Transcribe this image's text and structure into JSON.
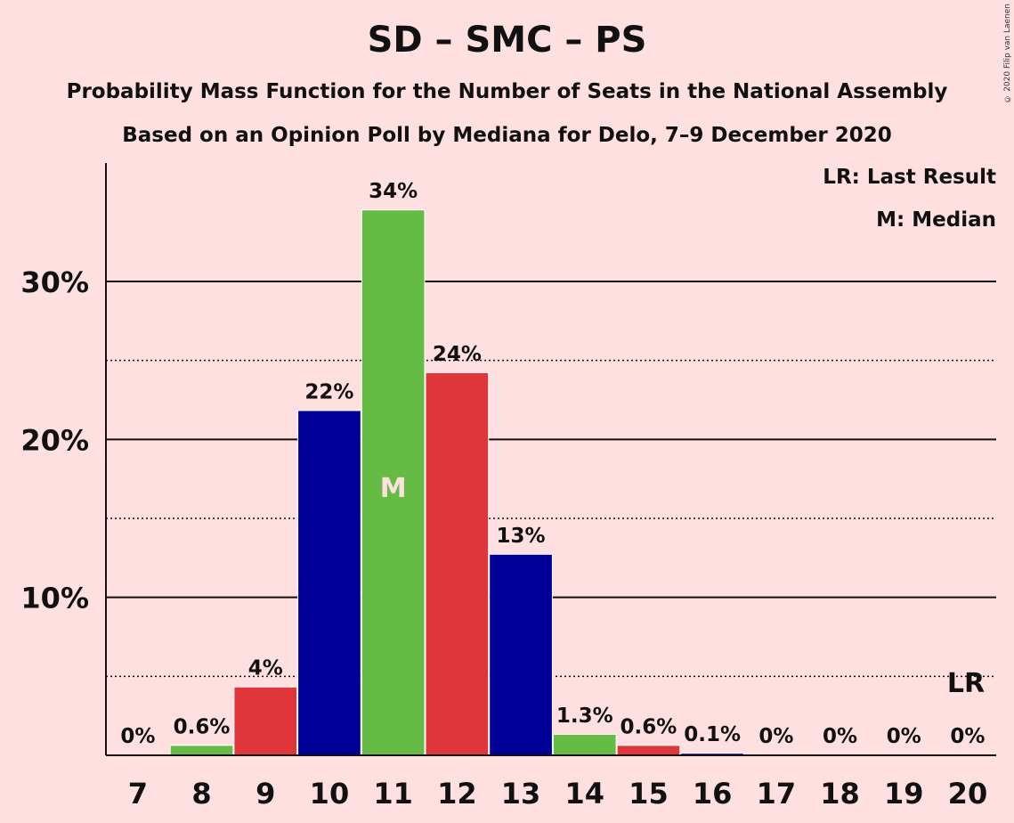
{
  "title": "SD – SMC – PS",
  "subtitle_1": "Probability Mass Function for the Number of Seats in the National Assembly",
  "subtitle_2": "Based on an Opinion Poll by Mediana for Delo, 7–9 December 2020",
  "copyright": "© 2020 Filip van Laenen",
  "legend": {
    "last_result": "LR: Last Result",
    "median": "M: Median"
  },
  "colors": {
    "background": "#FFE0E0",
    "blue": "#000099",
    "green": "#66BB44",
    "red": "#E0353A"
  },
  "chart_data": {
    "type": "bar",
    "categories": [
      "7",
      "8",
      "9",
      "10",
      "11",
      "12",
      "13",
      "14",
      "15",
      "16",
      "17",
      "18",
      "19",
      "20"
    ],
    "values": [
      0,
      0.6,
      4.3,
      21.8,
      34.5,
      24.2,
      12.7,
      1.3,
      0.6,
      0.1,
      0,
      0,
      0,
      0
    ],
    "value_labels": [
      "0%",
      "0.6%",
      "4%",
      "22%",
      "34%",
      "24%",
      "13%",
      "1.3%",
      "0.6%",
      "0.1%",
      "0%",
      "0%",
      "0%",
      "0%"
    ],
    "bar_colors": [
      "green",
      "green",
      "red",
      "blue",
      "green",
      "red",
      "blue",
      "green",
      "red",
      "blue",
      "green",
      "red",
      "blue",
      "green"
    ],
    "ylim": [
      0,
      37.5
    ],
    "yticks": [
      10,
      20,
      30
    ],
    "ytick_labels": [
      "10%",
      "20%",
      "30%"
    ],
    "minor_gridlines": [
      5,
      15,
      25
    ],
    "median": {
      "category": "11",
      "label": "M"
    },
    "last_result": {
      "category": "20",
      "label": "LR"
    }
  }
}
